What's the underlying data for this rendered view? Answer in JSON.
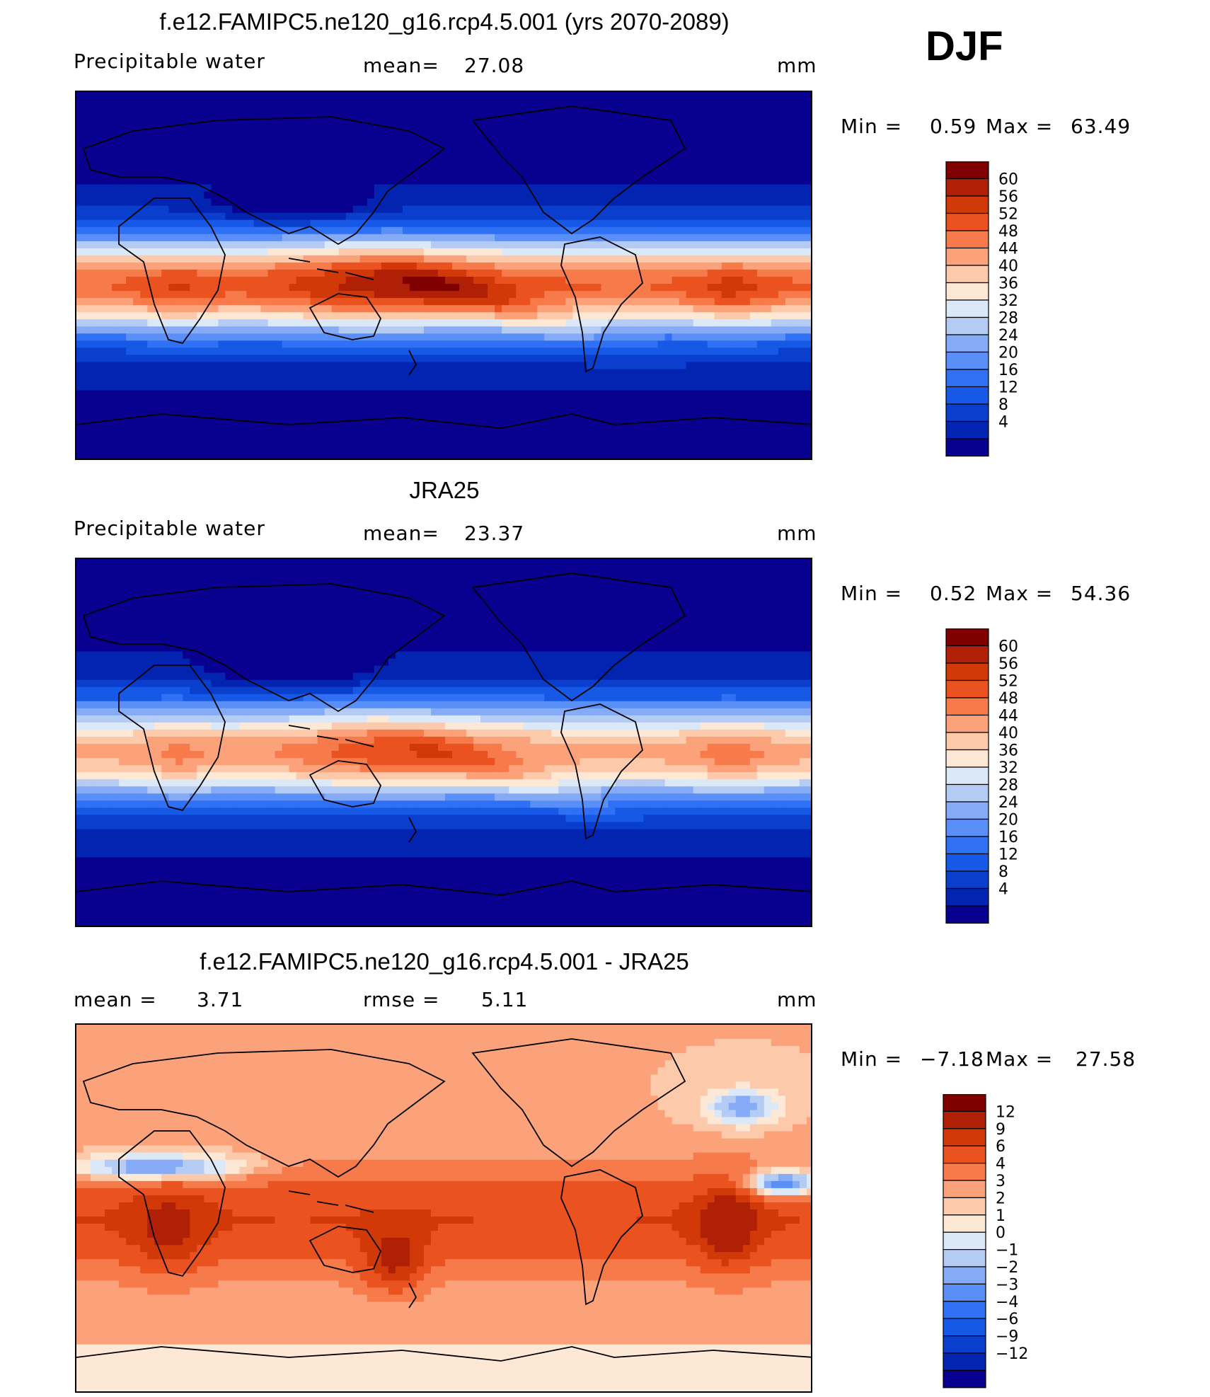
{
  "season": "DJF",
  "units": "mm",
  "colors": {
    "pw_scale": [
      "#08008e",
      "#0324b0",
      "#0a3ecc",
      "#1659e6",
      "#2f70f5",
      "#5a8ff7",
      "#86abf6",
      "#b4cbf4",
      "#dbe8f8",
      "#fde8d6",
      "#fccaaa",
      "#fca27a",
      "#f67a4a",
      "#ea5220",
      "#d13a08",
      "#b02006",
      "#800000"
    ],
    "diff_scale": [
      "#08008e",
      "#0324b0",
      "#0a3ecc",
      "#1659e6",
      "#2f70f5",
      "#5a8ff7",
      "#86abf6",
      "#b4cbf4",
      "#dbe8f8",
      "#fde8d6",
      "#fccaaa",
      "#fca27a",
      "#f67a4a",
      "#ea5220",
      "#d13a08",
      "#b02006",
      "#800000"
    ]
  },
  "panels": [
    {
      "title": "f.e12.FAMIPC5.ne120_g16.rcp4.5.001 (yrs 2070-2089)",
      "left_label": "Precipitable water",
      "center_label": "mean=",
      "center_value": "27.08",
      "right_label": "mm",
      "min_label": "Min =",
      "min_value": "0.59",
      "max_label": "Max =",
      "max_value": "63.49",
      "kind": "model"
    },
    {
      "title": "JRA25",
      "left_label": "Precipitable water",
      "center_label": "mean=",
      "center_value": "23.37",
      "right_label": "mm",
      "min_label": "Min =",
      "min_value": "0.52",
      "max_label": "Max =",
      "max_value": "54.36",
      "kind": "obs"
    },
    {
      "title": "f.e12.FAMIPC5.ne120_g16.rcp4.5.001 - JRA25",
      "left_label": "mean =",
      "left_value": "3.71",
      "center_label": "rmse =",
      "center_value": "5.11",
      "right_label": "mm",
      "min_label": "Min =",
      "min_value": "−7.18",
      "max_label": "Max =",
      "max_value": "27.58",
      "kind": "diff"
    }
  ],
  "chart_data": [
    {
      "type": "heatmap",
      "title": "f.e12.FAMIPC5.ne120_g16.rcp4.5.001 (yrs 2070-2089)",
      "variable": "Precipitable water",
      "units": "mm",
      "mean": 27.08,
      "min": 0.59,
      "max": 63.49,
      "colorbar_levels": [
        60,
        56,
        52,
        48,
        44,
        40,
        36,
        32,
        28,
        24,
        20,
        16,
        12,
        8,
        4
      ]
    },
    {
      "type": "heatmap",
      "title": "JRA25",
      "variable": "Precipitable water",
      "units": "mm",
      "mean": 23.37,
      "min": 0.52,
      "max": 54.36,
      "colorbar_levels": [
        60,
        56,
        52,
        48,
        44,
        40,
        36,
        32,
        28,
        24,
        20,
        16,
        12,
        8,
        4
      ]
    },
    {
      "type": "heatmap",
      "title": "f.e12.FAMIPC5.ne120_g16.rcp4.5.001 - JRA25",
      "units": "mm",
      "mean": 3.71,
      "rmse": 5.11,
      "min": -7.18,
      "max": 27.58,
      "colorbar_levels": [
        "12",
        "9",
        "6",
        "4",
        "3",
        "2",
        "1",
        "0",
        "−1",
        "−2",
        "−3",
        "−4",
        "−6",
        "−9",
        "−12"
      ]
    }
  ]
}
